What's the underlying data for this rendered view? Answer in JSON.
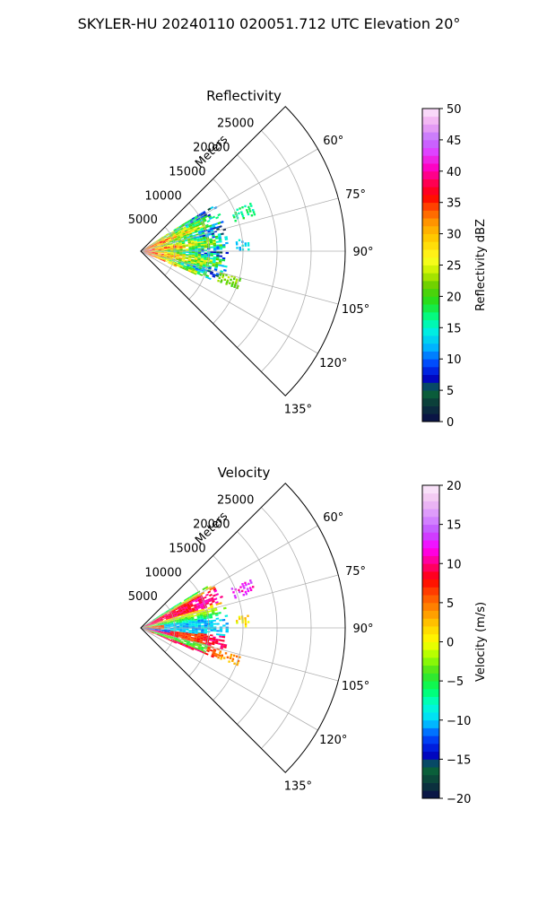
{
  "figure": {
    "suptitle": "SKYLER-HU  20240110  020051.712 UTC Elevation 20°"
  },
  "chart_data": [
    {
      "type": "heatmap",
      "subtype": "polar-sector (PPI)",
      "title": "Reflectivity",
      "radial_axis_label": "Meters",
      "radial_ticks": [
        5000,
        10000,
        15000,
        20000,
        25000
      ],
      "radial_tick_labels": [
        "5000",
        "10000",
        "15000",
        "20000",
        "25000"
      ],
      "rlim": [
        0,
        30000
      ],
      "theta_range_deg": [
        45,
        135
      ],
      "theta_ticks_deg": [
        60,
        75,
        90,
        105,
        120,
        135
      ],
      "theta_tick_labels": [
        "60°",
        "75°",
        "90°",
        "105°",
        "120°",
        "135°"
      ],
      "grid": true,
      "colorbar": {
        "label": "Reflectivity dBZ",
        "range": [
          0,
          50
        ],
        "ticks": [
          0,
          5,
          10,
          15,
          20,
          25,
          30,
          35,
          40,
          45,
          50
        ],
        "tick_labels": [
          "0",
          "5",
          "10",
          "15",
          "20",
          "25",
          "30",
          "35",
          "40",
          "45",
          "50"
        ],
        "colormap": "pyart_HomeyerRainbow",
        "position": "right"
      },
      "echo_field": {
        "main_echo_range_m": [
          0,
          12500
        ],
        "main_echo_theta_deg": [
          56,
          114
        ],
        "near_range_high_values_dbz": [
          25,
          40
        ],
        "distant_patches": [
          {
            "theta_deg": 69,
            "r_m": [
              14500,
              17500
            ],
            "value_dbz": 17
          },
          {
            "theta_deg": 86,
            "r_m": [
              14000,
              16000
            ],
            "value_dbz": 13
          },
          {
            "theta_deg": 108,
            "r_m": [
              12000,
              15000
            ],
            "value_dbz": 22
          }
        ]
      }
    },
    {
      "type": "heatmap",
      "subtype": "polar-sector (PPI)",
      "title": "Velocity",
      "radial_axis_label": "Meters",
      "radial_ticks": [
        5000,
        10000,
        15000,
        20000,
        25000
      ],
      "radial_tick_labels": [
        "5000",
        "10000",
        "15000",
        "20000",
        "25000"
      ],
      "rlim": [
        0,
        30000
      ],
      "theta_range_deg": [
        45,
        135
      ],
      "theta_ticks_deg": [
        60,
        75,
        90,
        105,
        120,
        135
      ],
      "theta_tick_labels": [
        "60°",
        "75°",
        "90°",
        "105°",
        "120°",
        "135°"
      ],
      "grid": true,
      "colorbar": {
        "label": "Velocity (m/s)",
        "range": [
          -20,
          20
        ],
        "ticks": [
          -20,
          -15,
          -10,
          -5,
          0,
          5,
          10,
          15,
          20
        ],
        "tick_labels": [
          "−20",
          "−15",
          "−10",
          "−5",
          "0",
          "5",
          "10",
          "15",
          "20"
        ],
        "colormap": "pyart_balance",
        "position": "right"
      },
      "echo_field": {
        "main_echo_range_m": [
          0,
          12500
        ],
        "main_echo_theta_deg": [
          56,
          114
        ],
        "structure": "alternating bands: negative (-10 m/s) near 90° and near 58°, positive (+8 m/s) near 67° and 100°",
        "distant_patches": [
          {
            "theta_deg": 69,
            "r_m": [
              14500,
              17500
            ],
            "value_ms": 12
          },
          {
            "theta_deg": 86,
            "r_m": [
              14000,
              16000
            ],
            "value_ms": 1
          },
          {
            "theta_deg": 108,
            "r_m": [
              12000,
              15000
            ],
            "value_ms": 4
          }
        ]
      }
    }
  ]
}
